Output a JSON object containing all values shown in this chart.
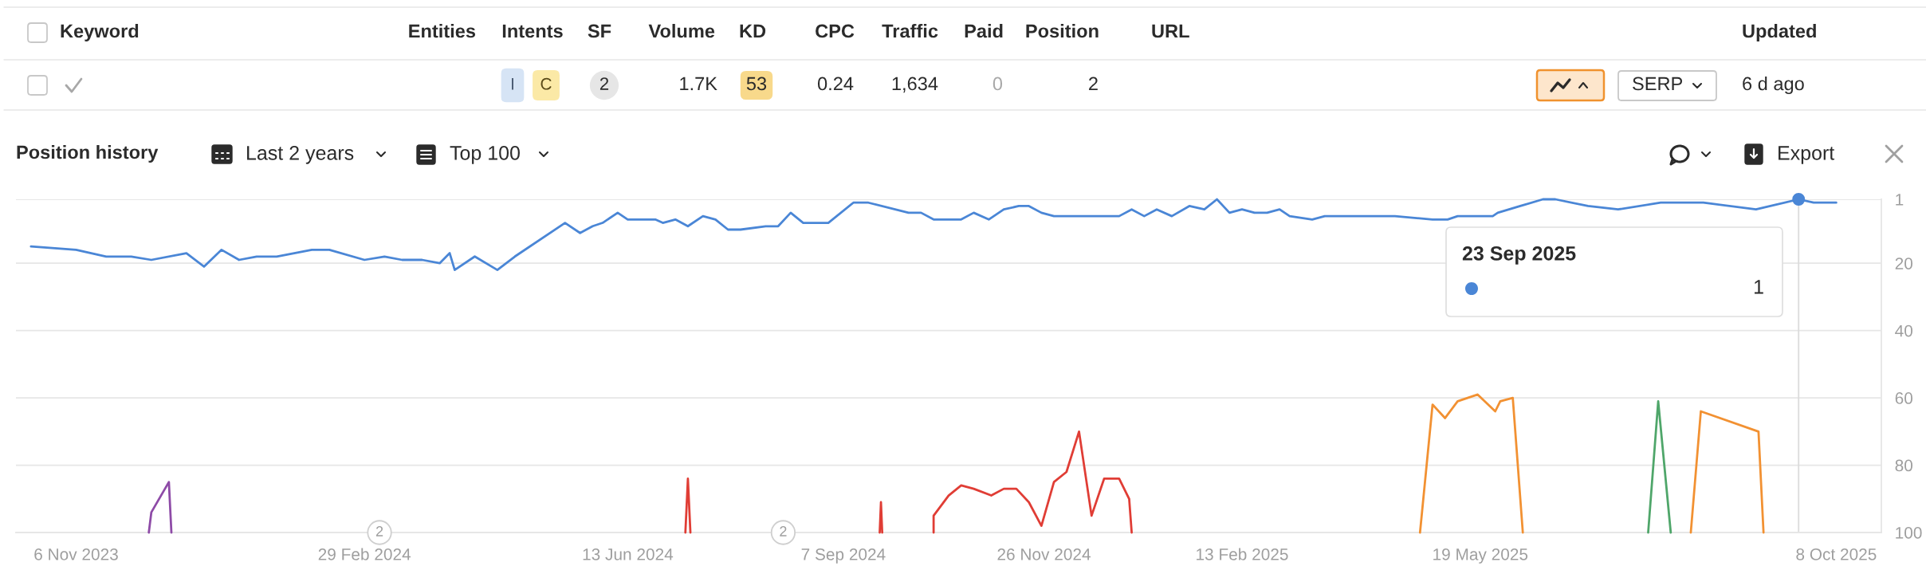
{
  "chart_data": {
    "type": "line",
    "title": "Position history",
    "annotations": [
      "Last 2 years",
      "Top 100",
      "Export",
      "Keyword",
      "Entities",
      "Intents",
      "SF",
      "Volume",
      "KD",
      "CPC",
      "Traffic",
      "Paid",
      "Position",
      "URL",
      "Updated",
      "I",
      "C",
      "2",
      "1.7K",
      "53",
      "0.24",
      "1,634",
      "0",
      "2",
      "SERP",
      "6 d ago",
      "23 Sep 2025",
      "1",
      {
        "text": "2",
        "x": "2024-03-06",
        "y": 100
      },
      {
        "text": "2",
        "x": "2024-08-14",
        "y": 100
      }
    ],
    "series": [
      {
        "color": "#4a86d6",
        "x": [
          "2023-10-19",
          "2023-11-06",
          "2023-11-18",
          "2023-11-28",
          "2023-12-06",
          "2023-12-20",
          "2023-12-27",
          "2024-01-03",
          "2024-01-10",
          "2024-01-17",
          "2024-01-25",
          "2024-02-08",
          "2024-02-15",
          "2024-02-29",
          "2024-03-08",
          "2024-03-15",
          "2024-03-23",
          "2024-03-30",
          "2024-04-03",
          "2024-04-05",
          "2024-04-13",
          "2024-04-22",
          "2024-04-29",
          "2024-05-19",
          "2024-05-25",
          "2024-05-30",
          "2024-06-03",
          "2024-06-09",
          "2024-06-13",
          "2024-06-24",
          "2024-06-27",
          "2024-07-02",
          "2024-07-07",
          "2024-07-13",
          "2024-07-18",
          "2024-07-23",
          "2024-07-28",
          "2024-08-07",
          "2024-08-12",
          "2024-08-17",
          "2024-08-22",
          "2024-09-01",
          "2024-09-11",
          "2024-09-17",
          "2024-10-03",
          "2024-10-08",
          "2024-10-13",
          "2024-10-24",
          "2024-10-29",
          "2024-11-04",
          "2024-11-10",
          "2024-11-16",
          "2024-11-20",
          "2024-11-25",
          "2024-11-30",
          "2024-12-26",
          "2024-12-31",
          "2025-01-05",
          "2025-01-10",
          "2025-01-16",
          "2025-01-23",
          "2025-01-29",
          "2025-02-03",
          "2025-02-08",
          "2025-02-13",
          "2025-02-18",
          "2025-02-23",
          "2025-02-28",
          "2025-03-04",
          "2025-03-13",
          "2025-03-18",
          "2025-04-15",
          "2025-04-30",
          "2025-05-06",
          "2025-05-10",
          "2025-05-24",
          "2025-05-26",
          "2025-06-04",
          "2025-06-13",
          "2025-06-18",
          "2025-07-01",
          "2025-07-13",
          "2025-07-30",
          "2025-08-16",
          "2025-09-06",
          "2025-09-23",
          "2025-09-29",
          "2025-10-08"
        ],
        "values": [
          15,
          16,
          18,
          18,
          19,
          17,
          21,
          16,
          19,
          18,
          18,
          16,
          16,
          19,
          18,
          19,
          19,
          20,
          17,
          22,
          18,
          22,
          18,
          8,
          11,
          9,
          8,
          5,
          7,
          7,
          8,
          7,
          9,
          6,
          7,
          10,
          10,
          9,
          9,
          5,
          8,
          8,
          2,
          2,
          5,
          5,
          7,
          7,
          5,
          7,
          4,
          3,
          3,
          5,
          6,
          6,
          4,
          6,
          4,
          6,
          3,
          4,
          1,
          5,
          4,
          5,
          5,
          4,
          6,
          7,
          6,
          6,
          7,
          7,
          6,
          6,
          5,
          3,
          1,
          1,
          3,
          4,
          2,
          2,
          4,
          1,
          2,
          2
        ]
      },
      {
        "type": "scatter",
        "color": "#4a86d6",
        "x": [
          "2025-09-23"
        ],
        "values": [
          1
        ]
      },
      {
        "color": "#8e4ba7",
        "x": [
          "2023-12-05",
          "2023-12-06",
          "2023-12-13",
          "2023-12-14"
        ],
        "values": [
          100,
          94,
          85,
          100
        ]
      },
      {
        "color": "#e03d35",
        "x": [
          "2024-07-06",
          "2024-07-07",
          "2024-07-08",
          "2024-08-15",
          "2024-09-21T12:00",
          "2024-09-22",
          "2024-09-22T12:00",
          "2024-10-01",
          "2024-10-13",
          "2024-10-13",
          "2024-10-19",
          "2024-10-24",
          "2024-10-29",
          "2024-11-05",
          "2024-11-10",
          "2024-11-15",
          "2024-11-20",
          "2024-11-25",
          "2024-11-30",
          "2024-12-05",
          "2024-12-10",
          "2024-12-15",
          "2024-12-20",
          "2024-12-26",
          "2024-12-30",
          "2024-12-31"
        ],
        "values": [
          100,
          84,
          100,
          null,
          100,
          91,
          100,
          null,
          100,
          95,
          89,
          86,
          87,
          89,
          87,
          87,
          91,
          98,
          85,
          82,
          70,
          95,
          84,
          84,
          90,
          100
        ]
      },
      {
        "color": "#f29132",
        "x": [
          "2025-04-25",
          "2025-04-30",
          "2025-05-05",
          "2025-05-10",
          "2025-05-18",
          "2025-05-25",
          "2025-05-27",
          "2025-06-01",
          "2025-06-05",
          "2025-07-10",
          "2025-08-11",
          "2025-08-15",
          "2025-09-07",
          "2025-09-09"
        ],
        "values": [
          100,
          62,
          66,
          61,
          59,
          64,
          61,
          60,
          100,
          null,
          100,
          64,
          70,
          100
        ]
      },
      {
        "color": "#4fa66a",
        "x": [
          "2025-07-25",
          "2025-07-29",
          "2025-08-03"
        ],
        "values": [
          100,
          61,
          100
        ]
      }
    ],
    "xlim": [
      "2023-10-13",
      "2025-10-26"
    ],
    "xticks": [
      {
        "value": "2023-11-06",
        "label": "6 Nov 2023"
      },
      {
        "value": "2024-02-29",
        "label": "29 Feb 2024"
      },
      {
        "value": "2024-06-13",
        "label": "13 Jun 2024"
      },
      {
        "value": "2024-09-07",
        "label": "7 Sep 2024"
      },
      {
        "value": "2024-11-26",
        "label": "26 Nov 2024"
      },
      {
        "value": "2025-02-13",
        "label": "13 Feb 2025"
      },
      {
        "value": "2025-05-19",
        "label": "19 May 2025"
      },
      {
        "value": "2025-10-08",
        "label": "8 Oct 2025"
      }
    ],
    "ylim": [
      100,
      1
    ],
    "yticks": [
      1,
      20,
      40,
      60,
      80,
      100
    ],
    "grid": "y",
    "ref_lines": [
      {
        "axis": "x",
        "value": "2025-09-23",
        "color": "#dcdcdc"
      }
    ]
  }
}
